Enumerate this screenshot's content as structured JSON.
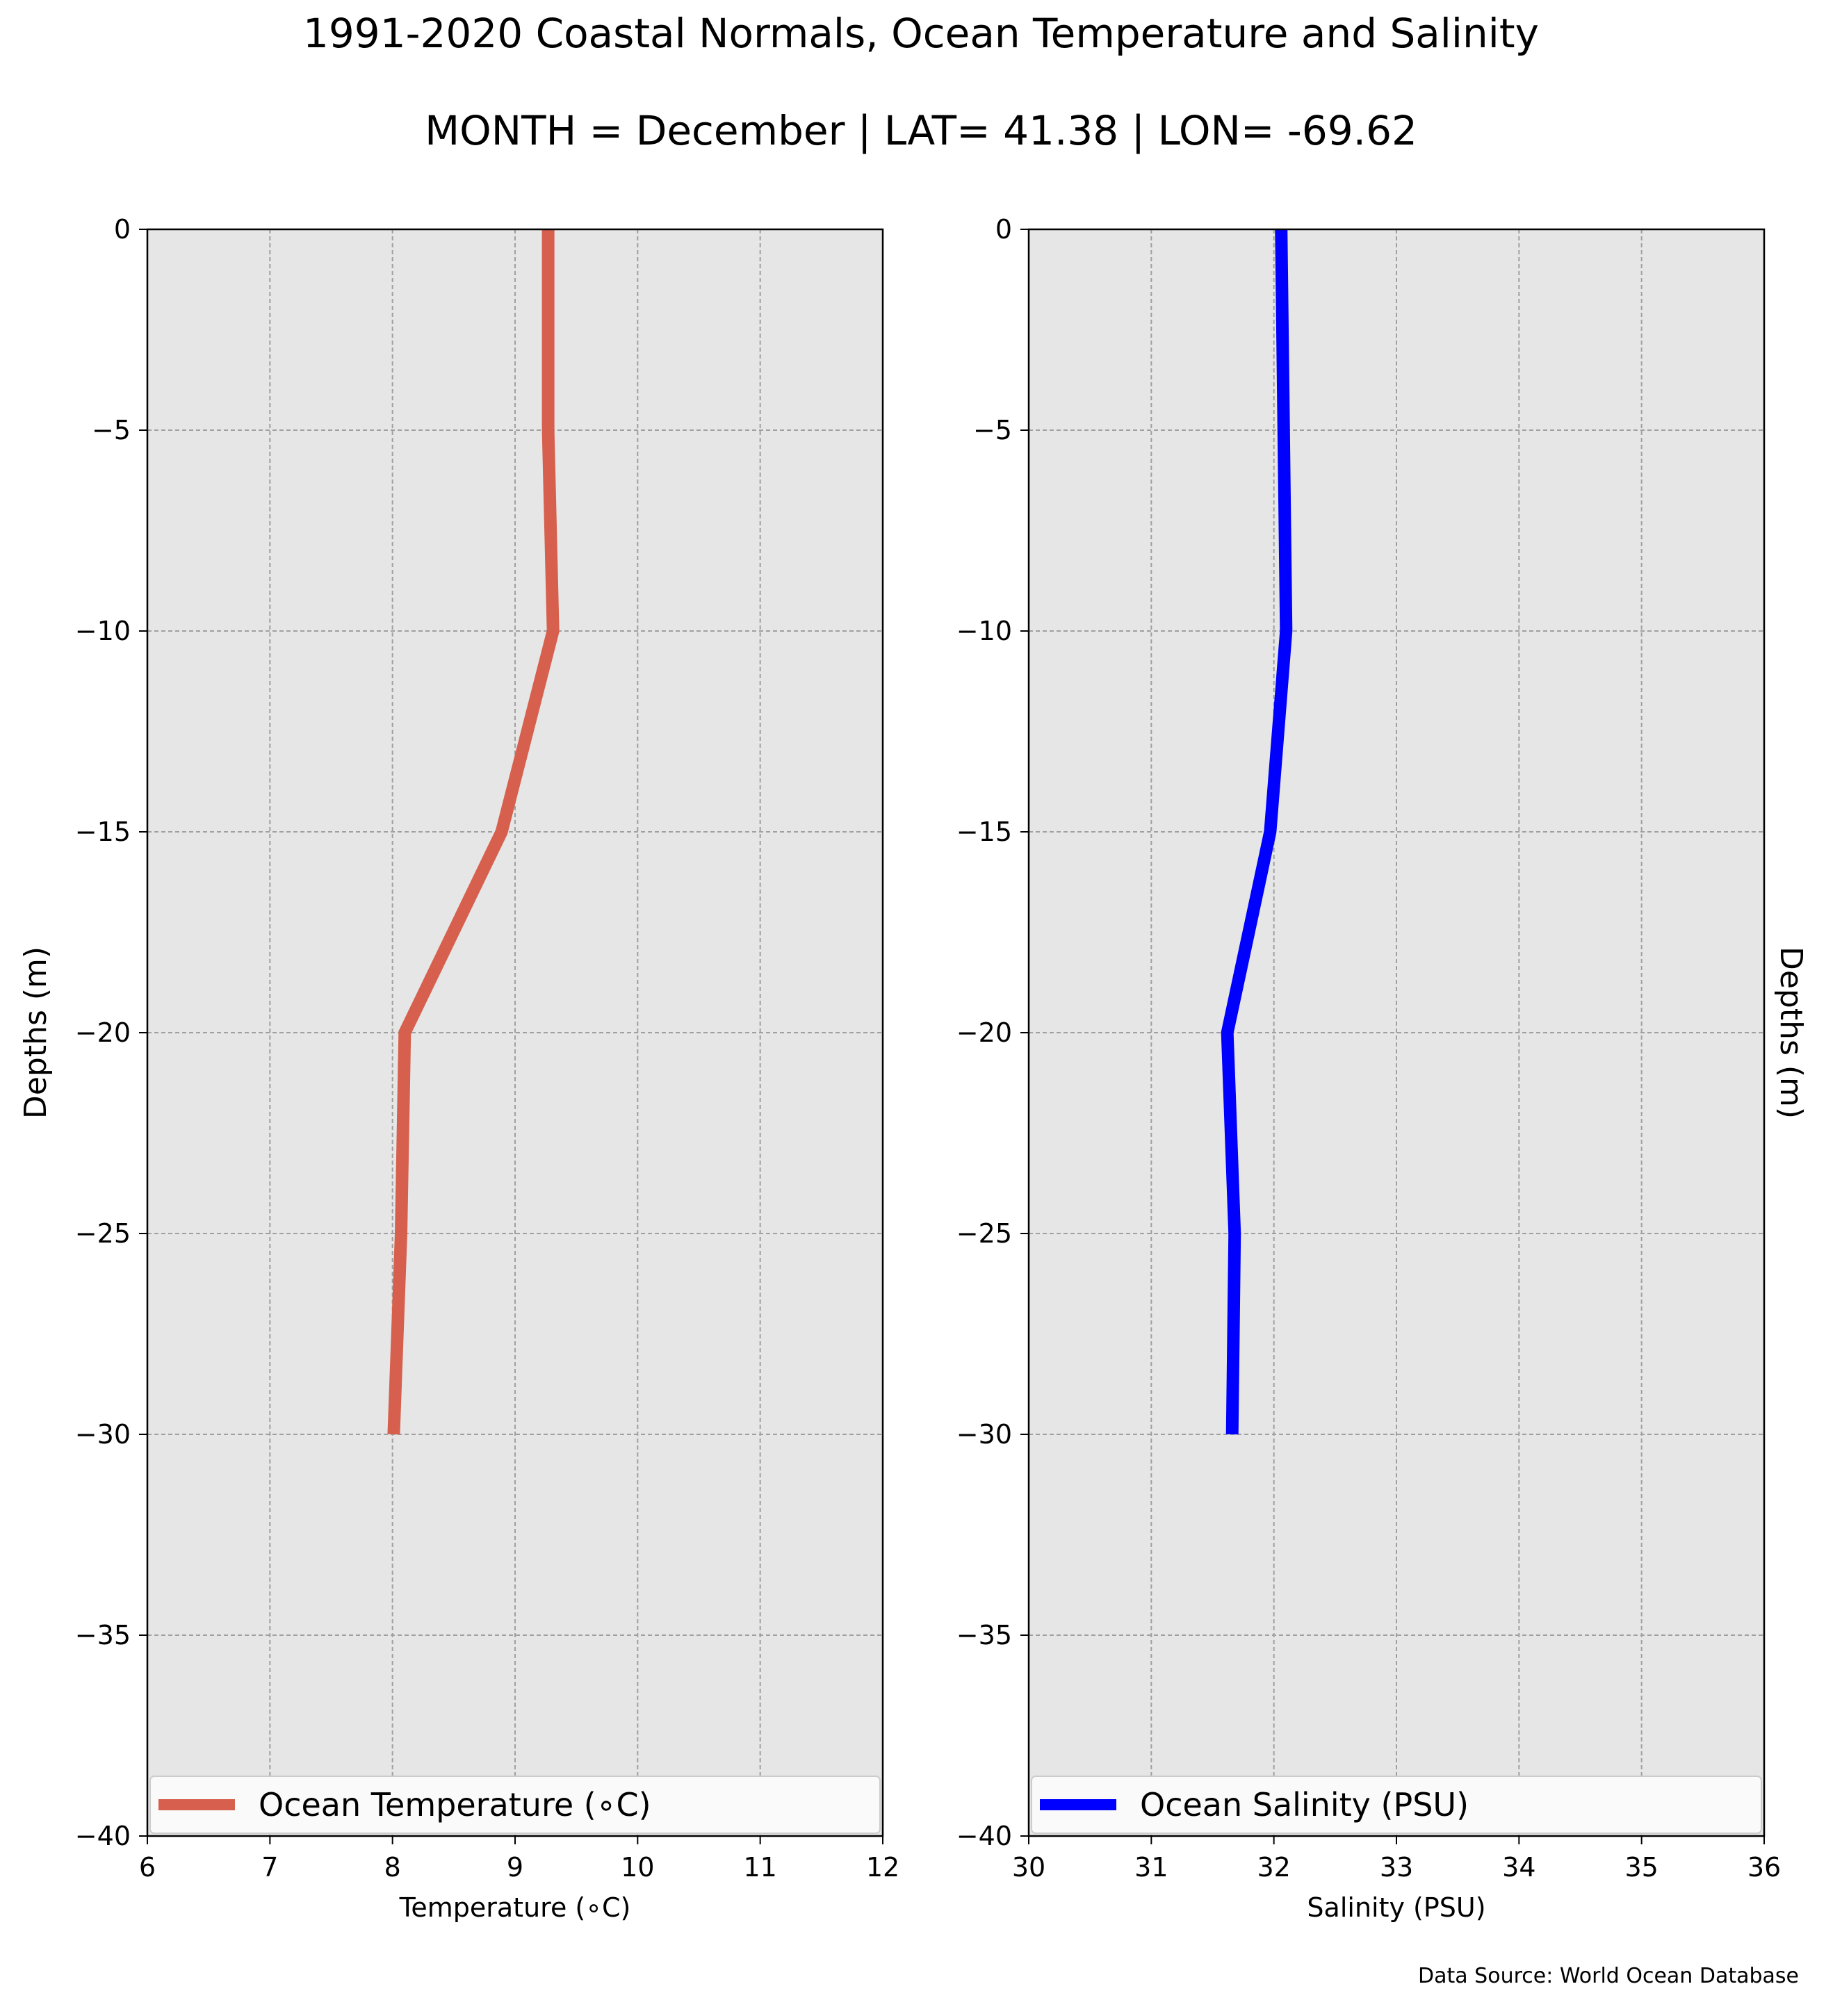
{
  "title": "1991-2020 Coastal Normals, Ocean Temperature and Salinity",
  "subtitle": "MONTH = December | LAT= 41.38 | LON= -69.62",
  "source": "Data Source: World Ocean Database",
  "chart_data": [
    {
      "type": "line",
      "xlabel": "Temperature ($^\\circ$C)",
      "xlabel_display": "Temperature (∘C)",
      "ylabel": "Depths (m)",
      "xlim": [
        6,
        12
      ],
      "ylim": [
        -40,
        0
      ],
      "xticks": [
        6,
        7,
        8,
        9,
        10,
        11,
        12
      ],
      "yticks": [
        0,
        -5,
        -10,
        -15,
        -20,
        -25,
        -30,
        -35,
        -40
      ],
      "grid": true,
      "legend_position": "bottom",
      "series": [
        {
          "name": "Ocean Temperature (∘C)",
          "color": "#d6604d",
          "points": [
            {
              "x": 9.27,
              "y": 0
            },
            {
              "x": 9.27,
              "y": -5
            },
            {
              "x": 9.31,
              "y": -10
            },
            {
              "x": 8.89,
              "y": -15
            },
            {
              "x": 8.1,
              "y": -20
            },
            {
              "x": 8.07,
              "y": -25
            },
            {
              "x": 8.01,
              "y": -30
            }
          ]
        }
      ]
    },
    {
      "type": "line",
      "xlabel": "Salinity (PSU)",
      "ylabel": "Depths (m)",
      "xlim": [
        30,
        36
      ],
      "ylim": [
        -40,
        0
      ],
      "xticks": [
        30,
        31,
        32,
        33,
        34,
        35,
        36
      ],
      "yticks": [
        0,
        -5,
        -10,
        -15,
        -20,
        -25,
        -30,
        -35,
        -40
      ],
      "grid": true,
      "legend_position": "bottom",
      "series": [
        {
          "name": "Ocean Salinity (PSU)",
          "color": "#0000ff",
          "points": [
            {
              "x": 32.06,
              "y": 0
            },
            {
              "x": 32.08,
              "y": -5
            },
            {
              "x": 32.1,
              "y": -10
            },
            {
              "x": 31.97,
              "y": -15
            },
            {
              "x": 31.62,
              "y": -20
            },
            {
              "x": 31.68,
              "y": -25
            },
            {
              "x": 31.66,
              "y": -30
            }
          ]
        }
      ]
    }
  ]
}
